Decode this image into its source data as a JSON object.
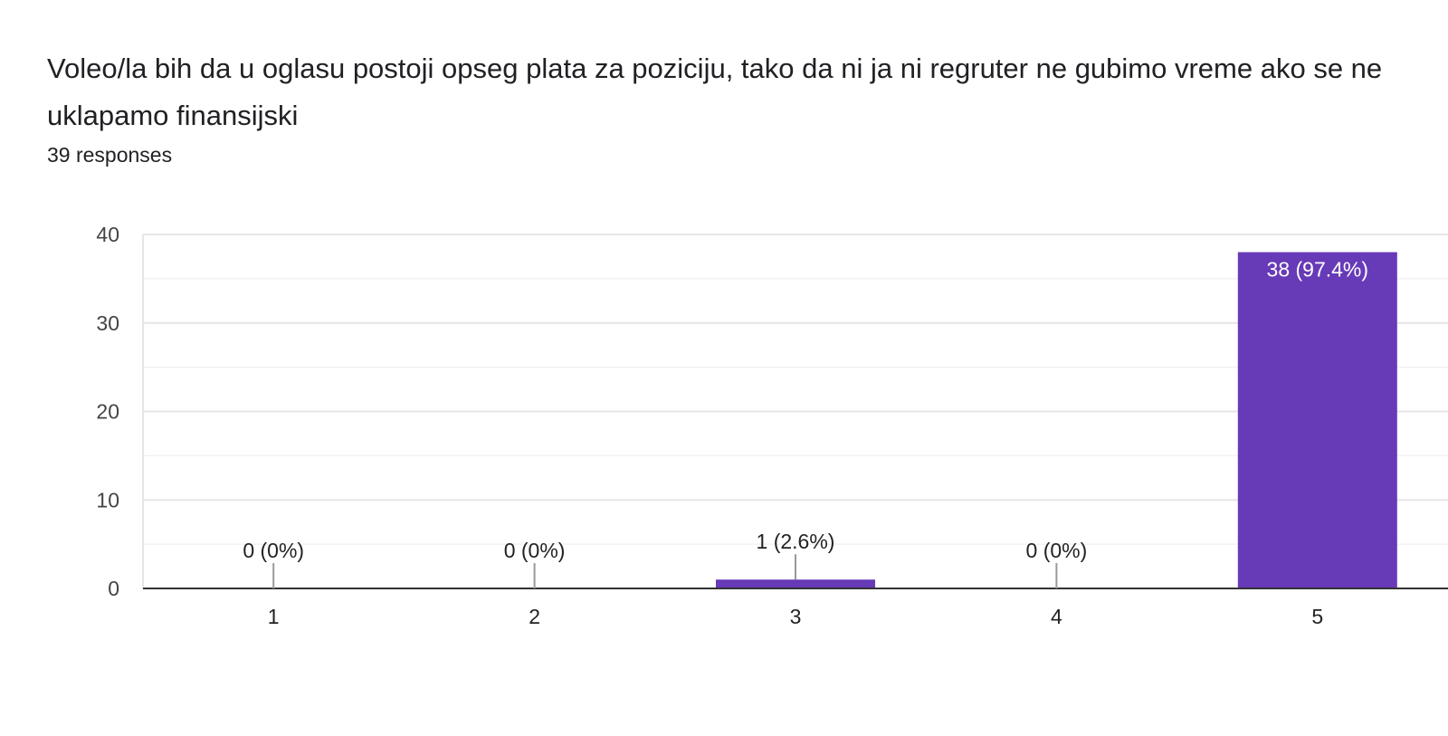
{
  "question": {
    "title": "Voleo/la bih da u oglasu postoji opseg plata za poziciju, tako da ni ja ni regruter ne gubimo vreme ako se ne uklapamo finansijski",
    "response_count": "39 responses"
  },
  "colors": {
    "bar": "#673ab7",
    "gridline_major": "#e6e6e6",
    "gridline_minor": "#f2f2f2",
    "axis": "#333333",
    "leader": "#999999"
  },
  "chart_data": {
    "type": "bar",
    "categories": [
      "1",
      "2",
      "3",
      "4",
      "5"
    ],
    "values": [
      0,
      0,
      1,
      0,
      38
    ],
    "data_labels": [
      "0 (0%)",
      "0 (0%)",
      "1 (2.6%)",
      "0 (0%)",
      "38 (97.4%)"
    ],
    "ylim": [
      0,
      40
    ],
    "yticks": [
      0,
      10,
      20,
      30,
      40
    ],
    "grid": true,
    "xlabel": "",
    "ylabel": ""
  }
}
